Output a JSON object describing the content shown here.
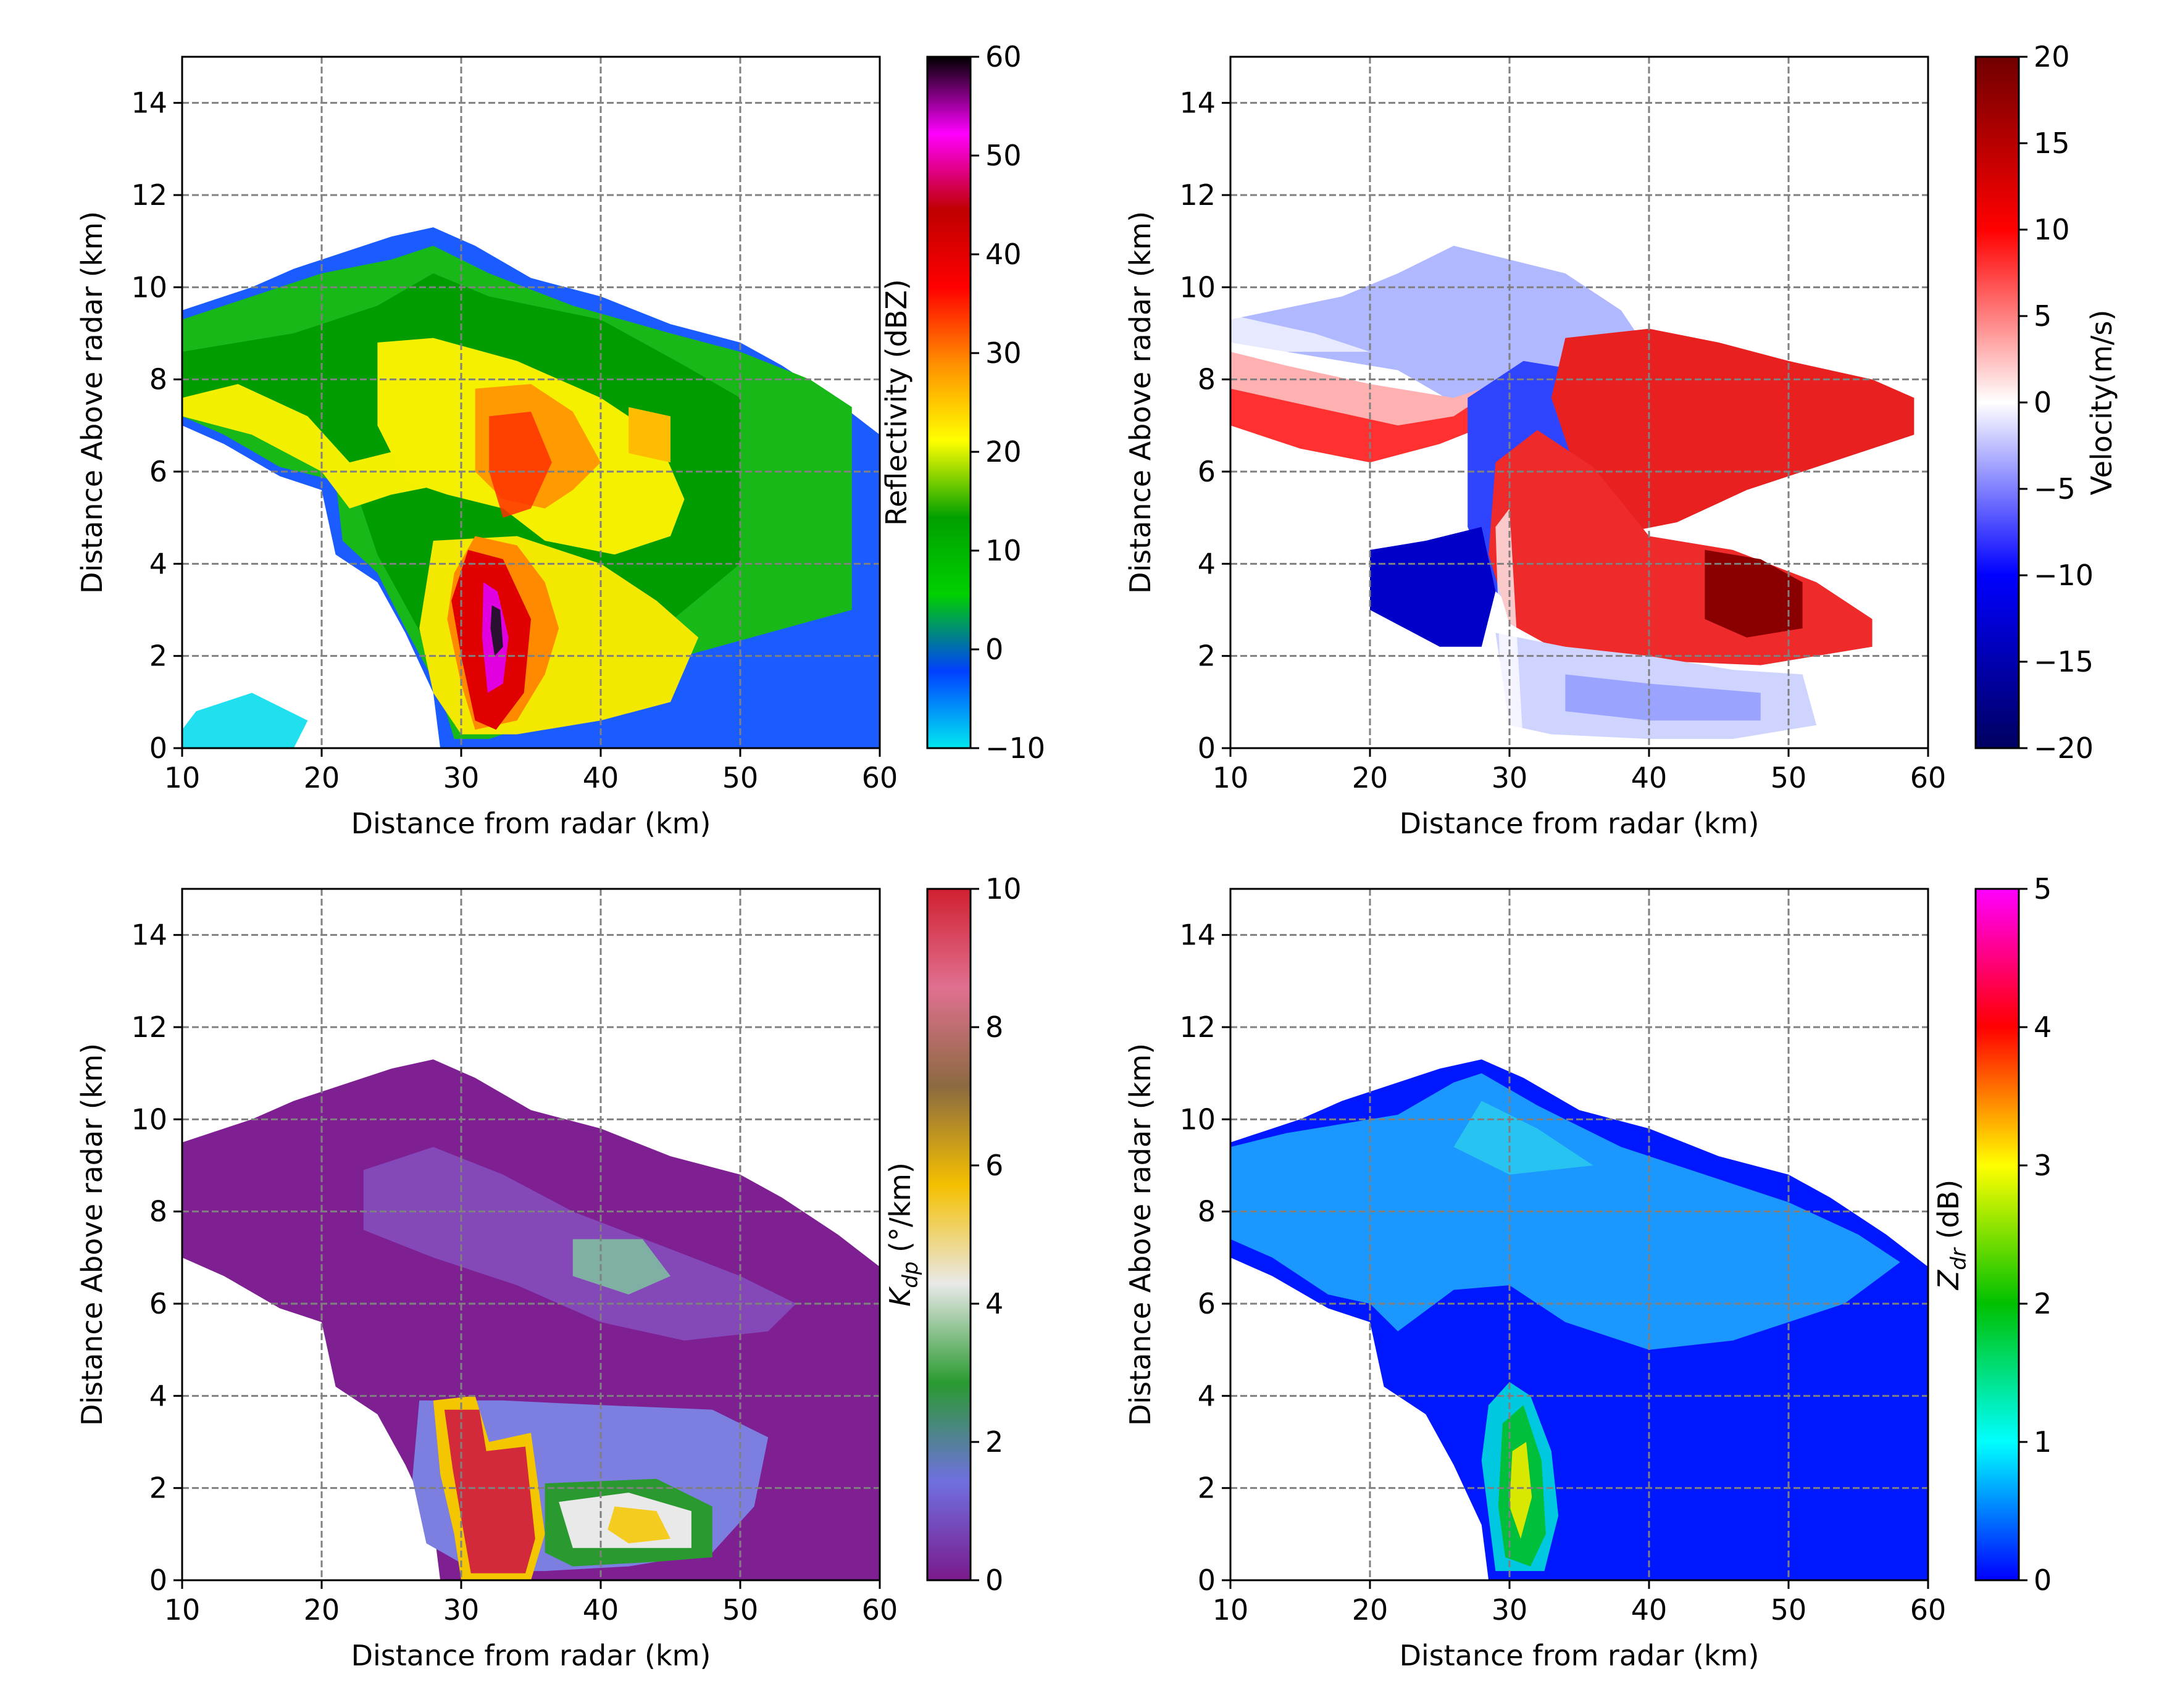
{
  "chart_data": [
    {
      "type": "heatmap",
      "title": "",
      "xlabel": "Distance from radar (km)",
      "ylabel": "Distance Above radar  (km)",
      "xlim": [
        10,
        60
      ],
      "ylim": [
        0,
        15
      ],
      "xticks": [
        "10",
        "20",
        "30",
        "40",
        "50",
        "60"
      ],
      "yticks": [
        "0",
        "2",
        "4",
        "6",
        "8",
        "10",
        "12",
        "14"
      ],
      "grid": true,
      "colorbar": {
        "label": "Reflectivity (dBZ)",
        "min": -10,
        "max": 60,
        "ticks": [
          "−10",
          "0",
          "10",
          "20",
          "30",
          "40",
          "50",
          "60"
        ],
        "colors": [
          "#00e8f0",
          "#0040ff",
          "#00d000",
          "#00a000",
          "#ffff00",
          "#ff9000",
          "#ff0000",
          "#c00000",
          "#ff00ff",
          "#000000"
        ]
      }
    },
    {
      "type": "heatmap",
      "title": "",
      "xlabel": "Distance from radar (km)",
      "ylabel": "Distance Above radar  (km)",
      "xlim": [
        10,
        60
      ],
      "ylim": [
        0,
        15
      ],
      "xticks": [
        "10",
        "20",
        "30",
        "40",
        "50",
        "60"
      ],
      "yticks": [
        "0",
        "2",
        "4",
        "6",
        "8",
        "10",
        "12",
        "14"
      ],
      "grid": true,
      "colorbar": {
        "label": "Velocity(m/s)",
        "min": -20,
        "max": 20,
        "ticks": [
          "−20",
          "−15",
          "−10",
          "−5",
          "0",
          "5",
          "10",
          "15",
          "20"
        ],
        "colors": [
          "#000060",
          "#0000ff",
          "#ffffff",
          "#ff0000",
          "#700000"
        ]
      }
    },
    {
      "type": "heatmap",
      "title": "",
      "xlabel": "Distance from radar (km)",
      "ylabel": "Distance Above radar  (km)",
      "xlim": [
        10,
        60
      ],
      "ylim": [
        0,
        15
      ],
      "xticks": [
        "10",
        "20",
        "30",
        "40",
        "50",
        "60"
      ],
      "yticks": [
        "0",
        "2",
        "4",
        "6",
        "8",
        "10",
        "12",
        "14"
      ],
      "grid": true,
      "colorbar": {
        "label": "Kdp (°/km)",
        "label_main": "K",
        "label_sub": "dp",
        "label_unit": " (°/km)",
        "min": 0,
        "max": 10,
        "ticks": [
          "0",
          "2",
          "4",
          "6",
          "8",
          "10"
        ],
        "colors": [
          "#7a1a8c",
          "#7070e0",
          "#2a9a30",
          "#e8e8e8",
          "#f5c000",
          "#8b6a40",
          "#e07090",
          "#d02030"
        ]
      }
    },
    {
      "type": "heatmap",
      "title": "",
      "xlabel": "Distance from radar (km)",
      "ylabel": "Distance Above radar  (km)",
      "xlim": [
        10,
        60
      ],
      "ylim": [
        0,
        15
      ],
      "xticks": [
        "10",
        "20",
        "30",
        "40",
        "50",
        "60"
      ],
      "yticks": [
        "0",
        "2",
        "4",
        "6",
        "8",
        "10",
        "12",
        "14"
      ],
      "grid": true,
      "colorbar": {
        "label": "Zdr (dB)",
        "label_main": "Z",
        "label_sub": "dr",
        "label_unit": " (dB)",
        "min": 0,
        "max": 5,
        "ticks": [
          "0",
          "1",
          "2",
          "3",
          "4",
          "5"
        ],
        "colors": [
          "#0000ff",
          "#00ffff",
          "#00c000",
          "#ffff00",
          "#ff0000",
          "#ff00ff"
        ]
      }
    }
  ]
}
